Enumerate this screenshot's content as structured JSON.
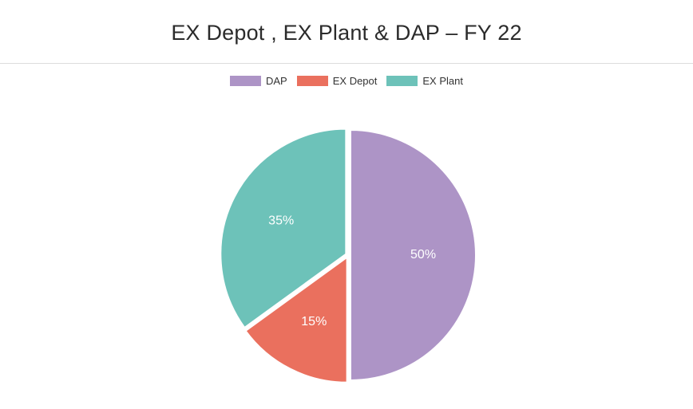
{
  "chart_data": {
    "type": "pie",
    "title": "EX Depot , EX Plant & DAP – FY 22",
    "legend_position": "top",
    "series": [
      {
        "name": "DAP",
        "value": 50,
        "label": "50%",
        "color": "#ad94c6"
      },
      {
        "name": "EX Depot",
        "value": 15,
        "label": "15%",
        "color": "#ea705e"
      },
      {
        "name": "EX Plant",
        "value": 35,
        "label": "35%",
        "color": "#6dc2b9"
      }
    ]
  }
}
